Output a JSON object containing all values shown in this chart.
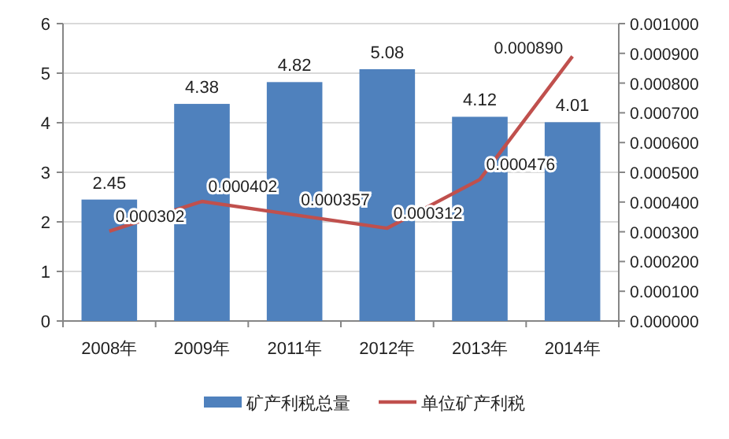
{
  "chart_data": {
    "type": "bar",
    "categories": [
      "2008年",
      "2009年",
      "2011年",
      "2012年",
      "2013年",
      "2014年"
    ],
    "series": [
      {
        "name": "矿产利税总量",
        "color": "#4f81bd",
        "values": [
          2.45,
          4.38,
          4.82,
          5.08,
          4.12,
          4.01
        ],
        "value_labels": [
          "2.45",
          "4.38",
          "4.82",
          "5.08",
          "4.12",
          "4.01"
        ]
      },
      {
        "name": "单位矿产利税",
        "type": "line",
        "axis": "y2",
        "color": "#c0504d",
        "values": [
          0.000302,
          0.000402,
          0.000357,
          0.000312,
          0.000476,
          0.00089
        ],
        "value_labels": [
          "0.000302",
          "0.000402",
          "0.000357",
          "0.000312",
          "0.000476",
          "0.000890"
        ]
      }
    ],
    "ylim": [
      0,
      6
    ],
    "yticks": [
      0,
      1,
      2,
      3,
      4,
      5,
      6
    ],
    "y2lim": [
      0,
      0.001
    ],
    "y2ticks": [
      {
        "value": 0,
        "label": "0.000000"
      },
      {
        "value": 0.0001,
        "label": "0.000100"
      },
      {
        "value": 0.0002,
        "label": "0.000200"
      },
      {
        "value": 0.0003,
        "label": "0.000300"
      },
      {
        "value": 0.0004,
        "label": "0.000400"
      },
      {
        "value": 0.0005,
        "label": "0.000500"
      },
      {
        "value": 0.0006,
        "label": "0.000600"
      },
      {
        "value": 0.0007,
        "label": "0.000700"
      },
      {
        "value": 0.0008,
        "label": "0.000800"
      },
      {
        "value": 0.0009,
        "label": "0.000900"
      },
      {
        "value": 0.001,
        "label": "0.001000"
      }
    ],
    "grid": "y",
    "legend": "bottom",
    "marker": "none",
    "line_style": "solid"
  }
}
